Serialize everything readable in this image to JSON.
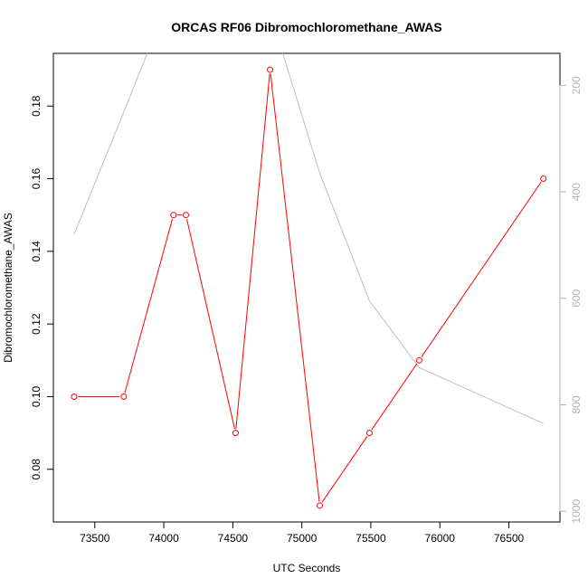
{
  "chart_data": {
    "type": "line",
    "title": "ORCAS RF06 Dibromochloromethane_AWAS",
    "xlabel": "UTC Seconds",
    "ylabel": "Dibromochloromethane_AWAS",
    "xlim": [
      73200,
      76870
    ],
    "ylim": [
      0.0655,
      0.1945
    ],
    "x_ticks": [
      "73500",
      "74000",
      "74500",
      "75000",
      "75500",
      "76000",
      "76500"
    ],
    "y_ticks": [
      "0.08",
      "0.10",
      "0.12",
      "0.14",
      "0.16",
      "0.18"
    ],
    "y2_ticks": [
      "200",
      "400",
      "600",
      "800",
      "1000"
    ],
    "y2_reversed": true,
    "y2lim": [
      1020,
      140
    ],
    "grid": false,
    "series": [
      {
        "color": "#ff0000",
        "axis": "left",
        "markers": true,
        "x": [
          73350,
          73710,
          74070,
          74160,
          74520,
          74770,
          75130,
          75490,
          75850,
          76750
        ],
        "y": [
          0.1,
          0.1,
          0.15,
          0.15,
          0.09,
          0.19,
          0.07,
          0.09,
          0.11,
          0.16
        ]
      },
      {
        "color": "#c0c0c0",
        "axis": "right",
        "markers": false,
        "x": [
          73350,
          73710,
          73880,
          74100,
          74400,
          74600,
          74850,
          75130,
          75490,
          75850,
          76750
        ],
        "y": [
          480,
          250,
          140,
          60,
          40,
          70,
          130,
          365,
          605,
          730,
          835
        ]
      }
    ]
  }
}
